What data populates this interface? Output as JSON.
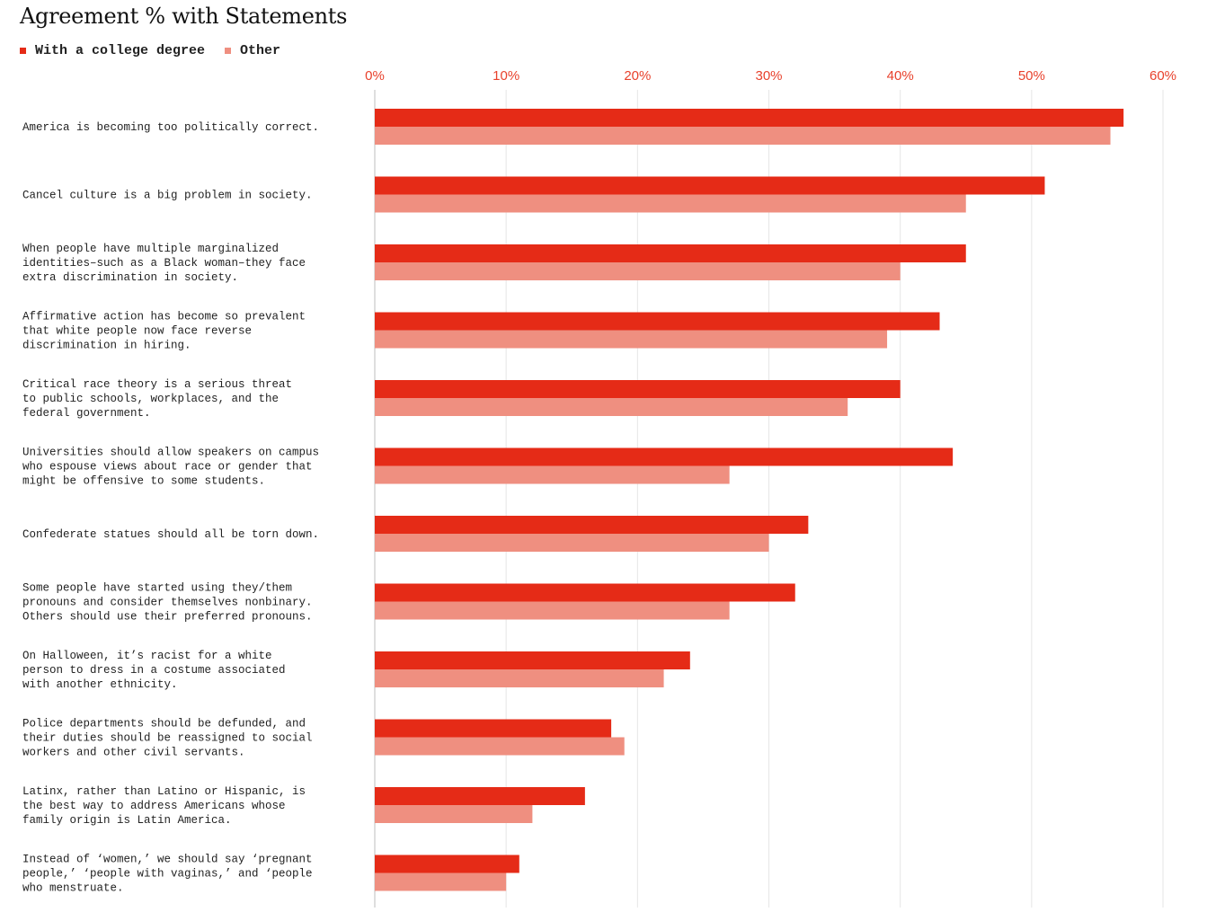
{
  "chart_data": {
    "type": "bar",
    "orientation": "horizontal",
    "title": "Agreement % with Statements",
    "legend_position": "top-left",
    "grid": true,
    "xlim": [
      0,
      60
    ],
    "x_ticks": [
      "0%",
      "10%",
      "20%",
      "30%",
      "40%",
      "50%",
      "60%"
    ],
    "categories": [
      [
        "America is becoming too politically correct."
      ],
      [
        "Cancel culture is a big problem in society."
      ],
      [
        "When people have multiple marginalized",
        "identities–such as a Black woman–they face",
        "extra discrimination in society."
      ],
      [
        "Affirmative action has become so prevalent",
        "that white people now face reverse",
        "discrimination in hiring."
      ],
      [
        "Critical race theory is a serious threat",
        "to public schools, workplaces, and the",
        "federal government."
      ],
      [
        "Universities should allow speakers on campus",
        "who espouse views about race or gender that",
        "might be offensive to some students."
      ],
      [
        "Confederate statues should all be torn down."
      ],
      [
        "Some people have started using they/them",
        "pronouns and consider themselves nonbinary.",
        "Others should use their preferred pronouns."
      ],
      [
        "On Halloween, it’s racist for a white",
        "person to dress in a costume associated",
        "with another ethnicity."
      ],
      [
        "Police departments should be defunded, and",
        "their duties should be reassigned to social",
        "workers and other civil servants."
      ],
      [
        "Latinx, rather than Latino or Hispanic, is",
        "the best way to address Americans whose",
        "family origin is Latin America."
      ],
      [
        "Instead of ‘women,’ we should say ‘pregnant",
        "people,’ ‘people with vaginas,’ and ‘people",
        "who menstruate."
      ]
    ],
    "series": [
      {
        "name": "With a college degree",
        "color": "#e52b17",
        "values": [
          57,
          51,
          45,
          43,
          40,
          44,
          33,
          32,
          24,
          18,
          16,
          11
        ]
      },
      {
        "name": "Other",
        "color": "#ef8f80",
        "values": [
          56,
          45,
          40,
          39,
          36,
          27,
          30,
          27,
          22,
          19,
          12,
          10
        ]
      }
    ],
    "axis_color": "#e8412c",
    "grid_color": "#e6e6e6"
  }
}
